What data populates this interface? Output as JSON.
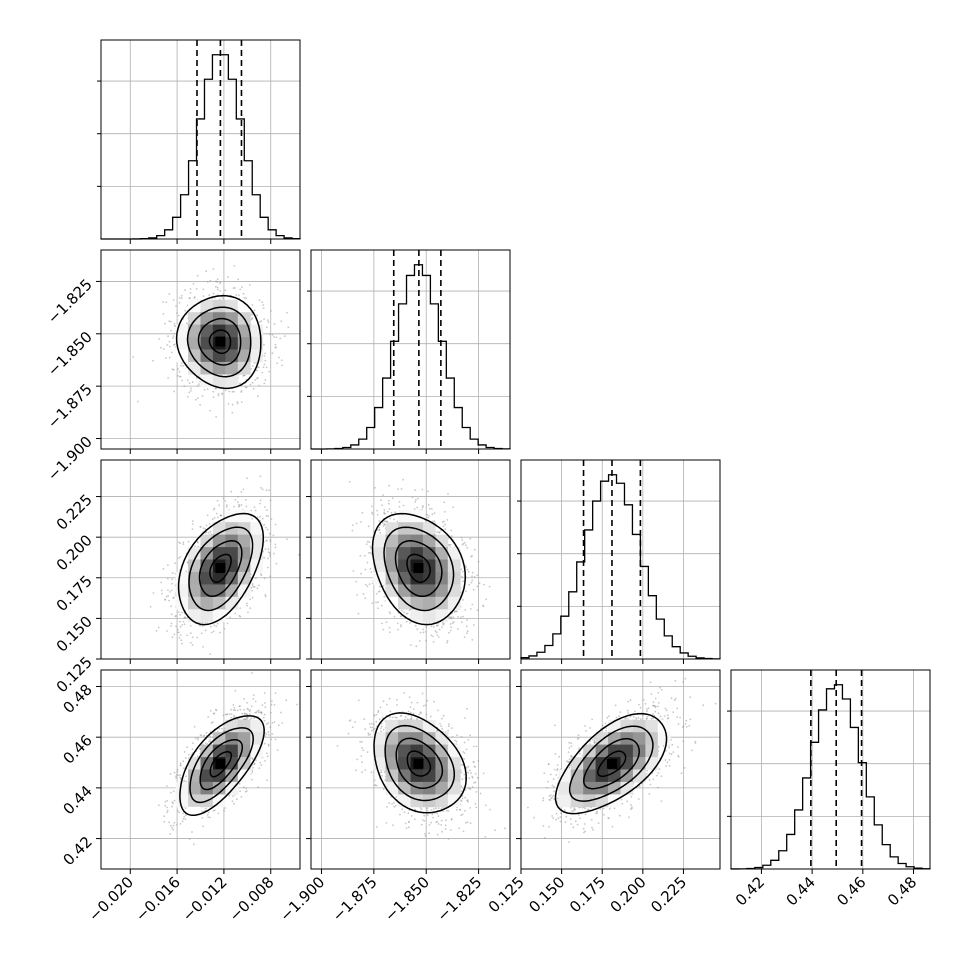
{
  "chart_data": {
    "type": "corner",
    "n_params": 4,
    "grid": true,
    "colors": {
      "line": "#000000",
      "grid": "#b0b0b0",
      "scatter": "#9a9a9a",
      "background": "#ffffff"
    },
    "params": [
      {
        "range": [
          -0.0225,
          -0.0055
        ],
        "ticks": [
          "-0.020",
          "-0.016",
          "-0.012",
          "-0.008"
        ],
        "tick_values": [
          -0.02,
          -0.016,
          -0.012,
          -0.008
        ],
        "quantiles": [
          -0.0143,
          -0.0123,
          -0.0105
        ],
        "mean": -0.0123,
        "sd": 0.0018
      },
      {
        "range": [
          -1.905,
          -1.81
        ],
        "ticks": [
          "-1.900",
          "-1.875",
          "-1.850",
          "-1.825"
        ],
        "tick_values": [
          -1.9,
          -1.875,
          -1.85,
          -1.825
        ],
        "quantiles": [
          -1.8655,
          -1.8535,
          -1.843
        ],
        "mean": -1.8537,
        "sd": 0.011
      },
      {
        "range": [
          0.125,
          0.2475
        ],
        "ticks": [
          "0.125",
          "0.150",
          "0.175",
          "0.200",
          "0.225"
        ],
        "tick_values": [
          0.125,
          0.15,
          0.175,
          0.2,
          0.225
        ],
        "quantiles": [
          0.1635,
          0.181,
          0.1985
        ],
        "mean": 0.181,
        "sd": 0.017
      },
      {
        "range": [
          0.408,
          0.4865
        ],
        "ticks": [
          "0.42",
          "0.44",
          "0.46",
          "0.48"
        ],
        "tick_values": [
          0.42,
          0.44,
          0.46,
          0.48
        ],
        "quantiles": [
          0.4395,
          0.4495,
          0.4595
        ],
        "mean": 0.4495,
        "sd": 0.0098
      }
    ],
    "correlations": [
      [
        1.0,
        -0.05,
        0.45,
        0.65
      ],
      [
        -0.05,
        1.0,
        -0.25,
        -0.3
      ],
      [
        0.45,
        -0.25,
        1.0,
        0.6
      ],
      [
        0.65,
        -0.3,
        0.6,
        1.0
      ]
    ],
    "histogram_bins": 25,
    "contour_levels_sigma": [
      0.5,
      1.0,
      1.5,
      2.0
    ]
  }
}
